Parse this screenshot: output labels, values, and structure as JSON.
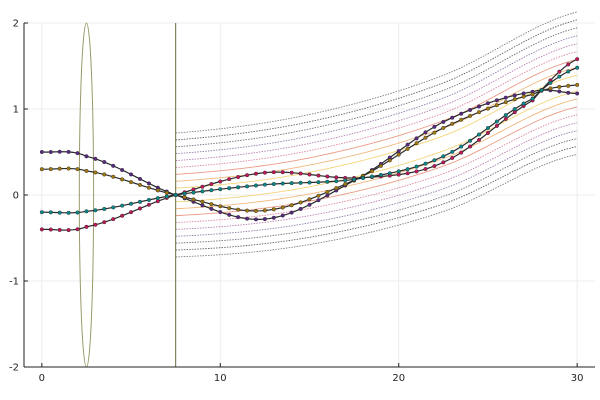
{
  "chart_data": {
    "type": "line",
    "title": "",
    "xlabel": "",
    "ylabel": "",
    "xlim": [
      -1,
      31
    ],
    "ylim": [
      -2,
      2
    ],
    "grid": true,
    "legend": "none",
    "x_ticks": [
      0,
      10,
      20,
      30
    ],
    "y_ticks": [
      -2,
      -1,
      0,
      1,
      2
    ],
    "x_tick_labels": [
      "0",
      "10",
      "20",
      "30"
    ],
    "y_tick_labels": [
      "-2",
      "-1",
      "0",
      "1",
      "2"
    ],
    "optical_elements": {
      "lens": {
        "x": 2.5,
        "y_range": [
          -2,
          2
        ],
        "half_width": 0.4
      },
      "screen": {
        "x": 7.5,
        "y_range": [
          -2,
          2
        ]
      }
    },
    "rays": [
      {
        "name": "",
        "color": "#5a2a82",
        "x": [
          0,
          2.5,
          7.5,
          12.5,
          17.8,
          22.5,
          27.5,
          30
        ],
        "y": [
          0.5,
          0.45,
          0.0,
          -0.28,
          0.2,
          0.85,
          1.2,
          1.18
        ]
      },
      {
        "name": "",
        "color": "#c0185a",
        "x": [
          0,
          2.5,
          7.5,
          12.5,
          17.8,
          22.5,
          27.5,
          30
        ],
        "y": [
          -0.4,
          -0.37,
          0.0,
          0.26,
          0.2,
          0.38,
          1.1,
          1.58
        ]
      },
      {
        "name": "",
        "color": "#a37a10",
        "x": [
          0,
          2.5,
          7.5,
          12.5,
          17.8,
          22.5,
          27.5,
          30
        ],
        "y": [
          0.3,
          0.28,
          0.0,
          -0.18,
          0.2,
          0.78,
          1.17,
          1.28
        ]
      },
      {
        "name": "",
        "color": "#0a8a8a",
        "x": [
          0,
          2.5,
          7.5,
          12.5,
          17.8,
          22.5,
          27.5,
          30
        ],
        "y": [
          -0.2,
          -0.19,
          0.0,
          0.12,
          0.19,
          0.45,
          1.12,
          1.48
        ]
      }
    ],
    "background_lines": {
      "x": [
        7.5,
        15,
        22.5,
        30
      ],
      "y_base": [
        0.0,
        0.18,
        0.6,
        1.3
      ],
      "offsets": [
        -0.72,
        -0.64,
        -0.56,
        -0.48,
        -0.4,
        -0.32,
        -0.24,
        -0.16,
        -0.08,
        0.08,
        0.16,
        0.24,
        0.32,
        0.4,
        0.48,
        0.56,
        0.64,
        0.72
      ],
      "colors": [
        "#f3d06b",
        "#f0b070",
        "#e89078",
        "#d87898",
        "#b070a8",
        "#8070a0",
        "#606070",
        "#505050",
        "#707070"
      ]
    }
  }
}
